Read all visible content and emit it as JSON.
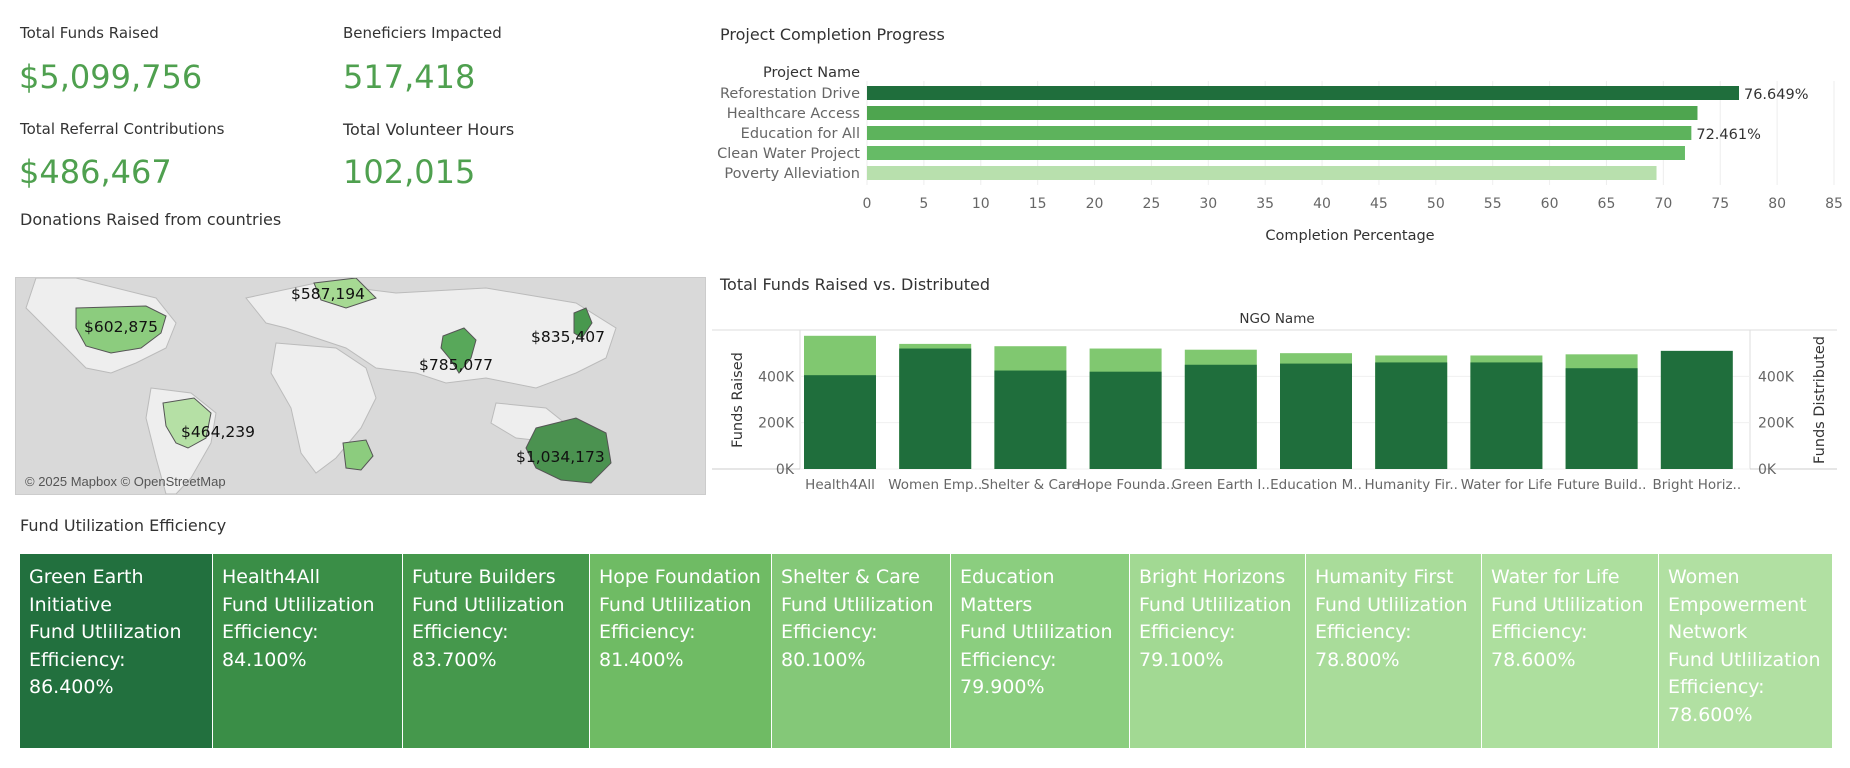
{
  "kpis": {
    "funds_raised": {
      "label": "Total Funds Raised",
      "value": "$5,099,756"
    },
    "beneficiaries": {
      "label": "Beneficiers Impacted",
      "value": "517,418"
    },
    "referral": {
      "label": "Total Referral Contributions",
      "value": "$486,467"
    },
    "volunteer": {
      "label": "Total Volunteer Hours",
      "value": "102,015"
    }
  },
  "map": {
    "title": "Donations Raised from countries",
    "credit": "© 2025 Mapbox © OpenStreetMap",
    "labels": [
      "$602,875",
      "$587,194",
      "$835,407",
      "$785,077",
      "$464,239",
      "$1,034,173"
    ]
  },
  "progress": {
    "title": "Project Completion Progress",
    "column_header": "Project Name",
    "xlabel": "Completion Percentage",
    "colors": [
      "#1f6e3c",
      "#4ea54f",
      "#5db35c",
      "#66bb66",
      "#b8e0ad"
    ]
  },
  "funds": {
    "title": "Total Funds Raised vs. Distributed",
    "header": "NGO Name",
    "left_axis": "Funds Raised",
    "right_axis": "Funds Distributed",
    "tick_labels": [
      "400K",
      "200K",
      "0K"
    ],
    "colors": {
      "raised": "#80c870",
      "distributed": "#1f6e3c"
    }
  },
  "efficiency": {
    "title": "Fund Utilization Efficiency",
    "cells": [
      {
        "name": "Green Earth Initiative",
        "label": "Fund Utlilization Efficiency:",
        "value": "86.400%",
        "color": "#22703e"
      },
      {
        "name": "Health4All",
        "label": "Fund Utlilization Efficiency:",
        "value": "84.100%",
        "color": "#3a8e47"
      },
      {
        "name": "Future Builders",
        "label": "Fund Utlilization Efficiency:",
        "value": "83.700%",
        "color": "#45984c"
      },
      {
        "name": "Hope Foundation",
        "label": "Fund Utlilization Efficiency:",
        "value": "81.400%",
        "color": "#6fbb64"
      },
      {
        "name": "Shelter & Care",
        "label": "Fund Utlilization Efficiency:",
        "value": "80.100%",
        "color": "#84c878"
      },
      {
        "name": "Education Matters",
        "label": "Fund Utlilization Efficiency:",
        "value": "79.900%",
        "color": "#8bce7f"
      },
      {
        "name": "Bright Horizons",
        "label": "Fund Utlilization Efficiency:",
        "value": "79.100%",
        "color": "#a2d993"
      },
      {
        "name": "Humanity First",
        "label": "Fund Utlilization Efficiency:",
        "value": "78.800%",
        "color": "#a9dc9a"
      },
      {
        "name": "Water for Life",
        "label": "Fund Utlilization Efficiency:",
        "value": "78.600%",
        "color": "#addf9e"
      },
      {
        "name": "Women Empowerment Network",
        "label": "Fund Utlilization Efficiency:",
        "value": "78.600%",
        "color": "#b1e0a2"
      }
    ]
  },
  "chart_data": [
    {
      "type": "bar",
      "title": "Project Completion Progress",
      "xlabel": "Completion Percentage",
      "ylabel": "Project Name",
      "categories": [
        "Reforestation Drive",
        "Healthcare Access",
        "Education for All",
        "Clean Water Project",
        "Poverty Alleviation"
      ],
      "values": [
        76.649,
        73.0,
        72.461,
        71.9,
        69.4
      ],
      "data_labels": [
        "76.649%",
        "",
        "72.461%",
        "",
        ""
      ],
      "xlim": [
        0,
        85
      ],
      "ticks": [
        0,
        5,
        10,
        15,
        20,
        25,
        30,
        35,
        40,
        45,
        50,
        55,
        60,
        65,
        70,
        75,
        80,
        85
      ],
      "grid": true
    },
    {
      "type": "bar",
      "title": "Total Funds Raised vs. Distributed",
      "xlabel": "NGO Name",
      "categories": [
        "Health4All",
        "Women Emp..",
        "Shelter & Care",
        "Hope Founda..",
        "Green Earth I..",
        "Education M..",
        "Humanity Fir..",
        "Water for Life",
        "Future Build..",
        "Bright Horiz.."
      ],
      "series": [
        {
          "name": "Funds Raised",
          "values": [
            575000,
            540000,
            530000,
            520000,
            515000,
            500000,
            490000,
            490000,
            495000,
            0
          ]
        },
        {
          "name": "Funds Distributed",
          "values": [
            405000,
            520000,
            425000,
            420000,
            450000,
            455000,
            460000,
            460000,
            435000,
            510000
          ]
        }
      ],
      "ylim": [
        0,
        600000
      ]
    }
  ]
}
